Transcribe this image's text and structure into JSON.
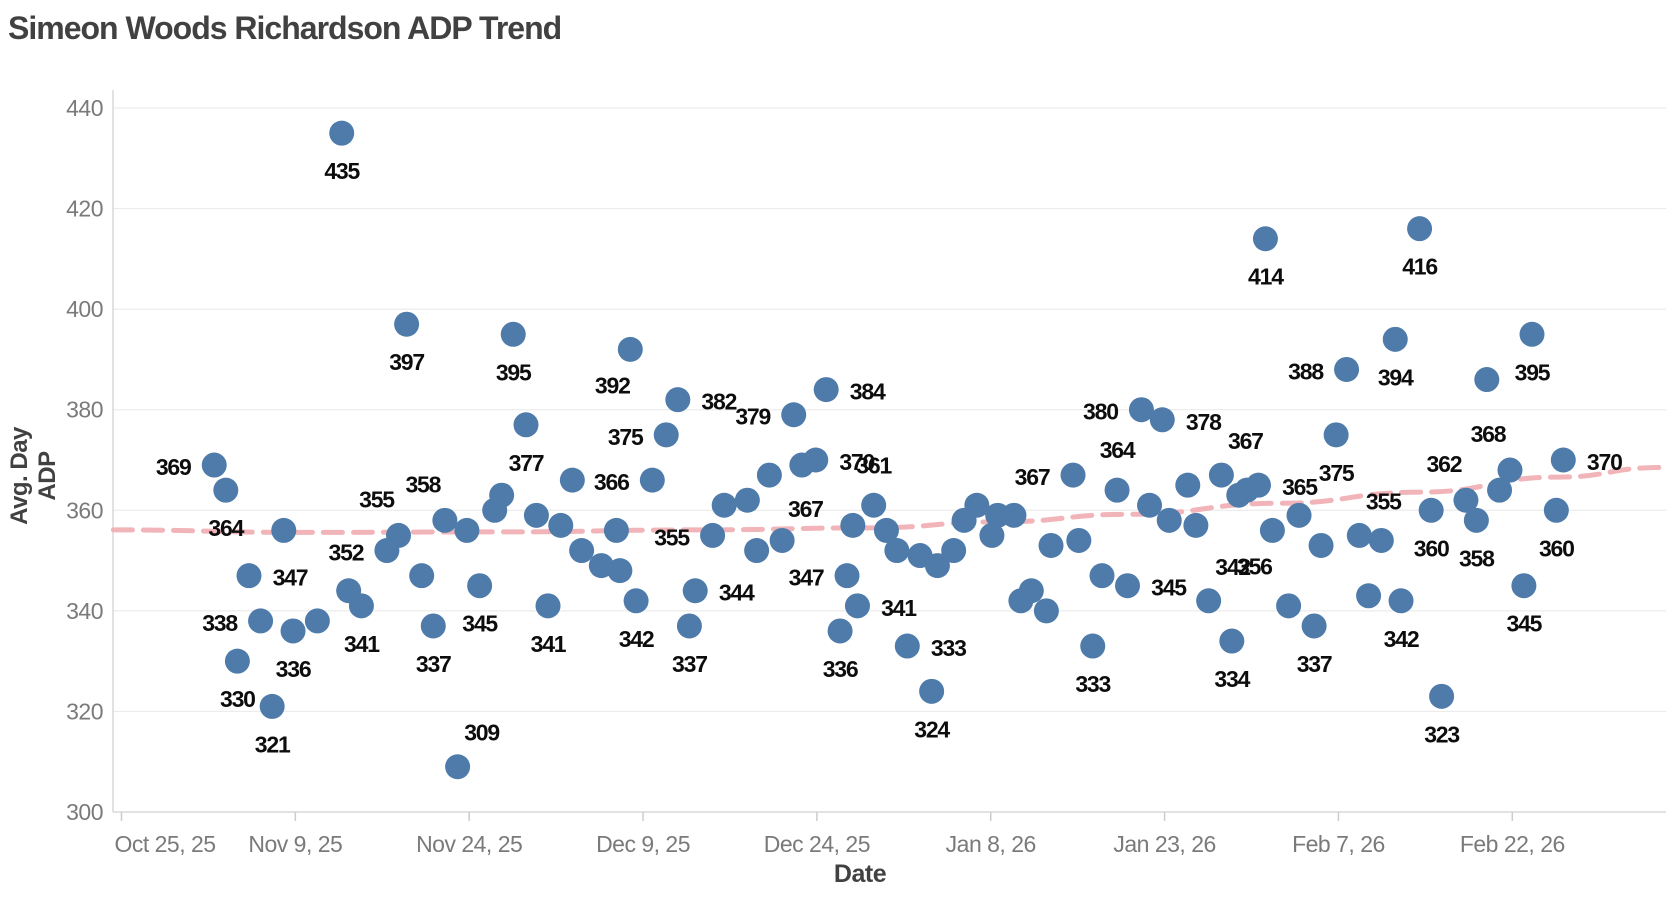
{
  "title": "Simeon Woods Richardson ADP Trend",
  "chart_data": {
    "type": "scatter",
    "title": "Simeon Woods Richardson ADP Trend",
    "xlabel": "Date",
    "ylabel": "Avg. Day ADP",
    "x_axis_note": "day index, day 0 = Oct 25 2025",
    "x_tick_days": [
      0,
      15,
      30,
      45,
      60,
      75,
      90,
      105,
      120
    ],
    "x_tick_labels": [
      "Oct 25, 25",
      "Nov 9, 25",
      "Nov 24, 25",
      "Dec 9, 25",
      "Dec 24, 25",
      "Jan 8, 26",
      "Jan 23, 26",
      "Feb 7, 26",
      "Feb 22, 26"
    ],
    "y_ticks": [
      300,
      320,
      340,
      360,
      380,
      400,
      420,
      440
    ],
    "ylim": [
      300,
      440
    ],
    "grid": "horizontal",
    "legend": "none",
    "points": [
      [
        8,
        369,
        "369",
        "l"
      ],
      [
        9,
        364,
        "364",
        "b"
      ],
      [
        10,
        330,
        "330",
        "b"
      ],
      [
        11,
        347,
        "347",
        "r"
      ],
      [
        12,
        338,
        "338",
        "l"
      ],
      [
        13,
        321,
        "321",
        "b"
      ],
      [
        14,
        356,
        null,
        null
      ],
      [
        14.8,
        336,
        "336",
        "b"
      ],
      [
        16.9,
        338,
        null,
        null
      ],
      [
        19,
        435,
        "435",
        "b"
      ],
      [
        19.6,
        344,
        null,
        null
      ],
      [
        20.7,
        341,
        "341",
        "b"
      ],
      [
        22.9,
        352,
        "352",
        "l"
      ],
      [
        23.9,
        355,
        "355",
        "al"
      ],
      [
        24.6,
        397,
        "397",
        "b"
      ],
      [
        25.9,
        347,
        null,
        null
      ],
      [
        26.9,
        337,
        "337",
        "b"
      ],
      [
        27.9,
        358,
        "358",
        "al"
      ],
      [
        29,
        309,
        "309",
        "ar"
      ],
      [
        29.8,
        356,
        null,
        null
      ],
      [
        30.9,
        345,
        "345",
        "b"
      ],
      [
        32.2,
        360,
        null,
        null
      ],
      [
        32.8,
        363,
        null,
        null
      ],
      [
        33.8,
        395,
        "395",
        "b"
      ],
      [
        34.9,
        377,
        "377",
        "b"
      ],
      [
        35.8,
        359,
        null,
        null
      ],
      [
        36.8,
        341,
        "341",
        "b"
      ],
      [
        37.9,
        357,
        null,
        null
      ],
      [
        38.9,
        366,
        null,
        null
      ],
      [
        39.7,
        352,
        null,
        null
      ],
      [
        41.4,
        349,
        null,
        null
      ],
      [
        42.7,
        356,
        null,
        null
      ],
      [
        43.0,
        348,
        null,
        null
      ],
      [
        43.9,
        392,
        "392",
        "bl"
      ],
      [
        44.4,
        342,
        "342",
        "b"
      ],
      [
        45.8,
        366,
        "366",
        "l"
      ],
      [
        47,
        375,
        "375",
        "l"
      ],
      [
        48,
        382,
        "382",
        "r"
      ],
      [
        49,
        337,
        "337",
        "b"
      ],
      [
        49.5,
        344,
        "344",
        "r"
      ],
      [
        51,
        355,
        "355",
        "l"
      ],
      [
        52,
        361,
        null,
        null
      ],
      [
        54,
        362,
        null,
        null
      ],
      [
        54.8,
        352,
        null,
        null
      ],
      [
        55.9,
        367,
        "367",
        "br"
      ],
      [
        57,
        354,
        null,
        null
      ],
      [
        58,
        379,
        "379",
        "l"
      ],
      [
        58.7,
        369,
        null,
        null
      ],
      [
        59.9,
        370,
        "370",
        "r"
      ],
      [
        60.8,
        384,
        "384",
        "r"
      ],
      [
        62,
        336,
        "336",
        "b"
      ],
      [
        62.6,
        347,
        "347",
        "l"
      ],
      [
        63.1,
        357,
        null,
        null
      ],
      [
        63.5,
        341,
        "341",
        "r"
      ],
      [
        64.9,
        361,
        "361",
        "a"
      ],
      [
        66,
        356,
        null,
        null
      ],
      [
        66.9,
        352,
        null,
        null
      ],
      [
        67.8,
        333,
        "333",
        "r"
      ],
      [
        68.9,
        351,
        null,
        null
      ],
      [
        69.9,
        324,
        "324",
        "b"
      ],
      [
        70.4,
        349,
        null,
        null
      ],
      [
        71.8,
        352,
        null,
        null
      ],
      [
        72.7,
        358,
        null,
        null
      ],
      [
        73.8,
        361,
        null,
        null
      ],
      [
        75.1,
        355,
        null,
        null
      ],
      [
        75.6,
        359,
        null,
        null
      ],
      [
        77,
        359,
        null,
        null
      ],
      [
        77.6,
        342,
        null,
        null
      ],
      [
        78.5,
        344,
        null,
        null
      ],
      [
        79.8,
        340,
        null,
        null
      ],
      [
        80.2,
        353,
        null,
        null
      ],
      [
        82.1,
        367,
        "367",
        "l"
      ],
      [
        82.6,
        354,
        null,
        null
      ],
      [
        83.8,
        333,
        "333",
        "b"
      ],
      [
        84.6,
        347,
        null,
        null
      ],
      [
        85.9,
        364,
        "364",
        "a"
      ],
      [
        86.8,
        345,
        "345",
        "r"
      ],
      [
        88,
        380,
        "380",
        "l"
      ],
      [
        88.7,
        361,
        null,
        null
      ],
      [
        89.8,
        378,
        "378",
        "r"
      ],
      [
        90.4,
        358,
        null,
        null
      ],
      [
        92,
        365,
        null,
        null
      ],
      [
        92.7,
        357,
        null,
        null
      ],
      [
        93.8,
        342,
        "342",
        "ar"
      ],
      [
        94.9,
        367,
        "367",
        "ar"
      ],
      [
        95.8,
        334,
        "334",
        "b"
      ],
      [
        96.4,
        363,
        null,
        null
      ],
      [
        97.1,
        364,
        null,
        null
      ],
      [
        98.1,
        365,
        "365",
        "r"
      ],
      [
        98.7,
        414,
        "414",
        "b"
      ],
      [
        99.3,
        356,
        "356",
        "bl"
      ],
      [
        100.7,
        341,
        null,
        null
      ],
      [
        101.6,
        359,
        null,
        null
      ],
      [
        102.9,
        337,
        "337",
        "b"
      ],
      [
        103.5,
        353,
        null,
        null
      ],
      [
        104.8,
        375,
        "375",
        "b"
      ],
      [
        105.7,
        388,
        "388",
        "l"
      ],
      [
        106.8,
        355,
        "355",
        "ar"
      ],
      [
        107.6,
        343,
        null,
        null
      ],
      [
        108.7,
        354,
        null,
        null
      ],
      [
        109.9,
        394,
        "394",
        "b"
      ],
      [
        110.4,
        342,
        "342",
        "b"
      ],
      [
        112,
        416,
        "416",
        "b"
      ],
      [
        113,
        360,
        "360",
        "b"
      ],
      [
        113.9,
        323,
        "323",
        "b"
      ],
      [
        116,
        362,
        "362",
        "al"
      ],
      [
        116.9,
        358,
        "358",
        "b"
      ],
      [
        117.8,
        386,
        null,
        null
      ],
      [
        118.9,
        364,
        null,
        null
      ],
      [
        119.8,
        368,
        "368",
        "al"
      ],
      [
        121,
        345,
        "345",
        "b"
      ],
      [
        121.7,
        395,
        "395",
        "b"
      ],
      [
        123.8,
        360,
        "360",
        "b"
      ],
      [
        124.4,
        370,
        "370",
        "r"
      ]
    ],
    "trend": {
      "style": "dashed",
      "points": [
        [
          -0.7,
          356.1
        ],
        [
          15.4,
          355.6
        ],
        [
          32.6,
          355.7
        ],
        [
          49.9,
          356.1
        ],
        [
          64.5,
          356.5
        ],
        [
          75.7,
          357.7
        ],
        [
          86.9,
          359.2
        ],
        [
          99.9,
          361.4
        ],
        [
          112,
          363.6
        ],
        [
          124,
          366.6
        ],
        [
          132.7,
          368.5
        ]
      ]
    },
    "colors": {
      "point": "#4e7ba9",
      "trend": "#efacb0",
      "grid": "#ececec",
      "axis_line": "#d8d8d8",
      "tick_mark": "#cccccc",
      "tick_text": "#7a7a7a",
      "point_label_text": "#0d0d0d",
      "title_text": "#414141"
    }
  }
}
